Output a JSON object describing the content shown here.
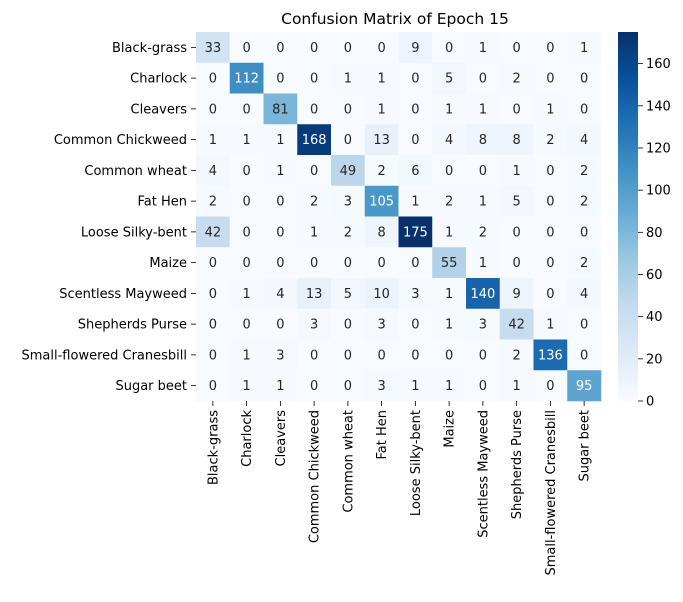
{
  "chart_data": {
    "type": "heatmap",
    "title": "Confusion Matrix of Epoch 15",
    "xlabel": "",
    "ylabel": "",
    "row_labels": [
      "Black-grass",
      "Charlock",
      "Cleavers",
      "Common Chickweed",
      "Common wheat",
      "Fat Hen",
      "Loose Silky-bent",
      "Maize",
      "Scentless Mayweed",
      "Shepherds Purse",
      "Small-flowered Cranesbill",
      "Sugar beet"
    ],
    "col_labels": [
      "Black-grass",
      "Charlock",
      "Cleavers",
      "Common Chickweed",
      "Common wheat",
      "Fat Hen",
      "Loose Silky-bent",
      "Maize",
      "Scentless Mayweed",
      "Shepherds Purse",
      "Small-flowered Cranesbill",
      "Sugar beet"
    ],
    "matrix": [
      [
        33,
        0,
        0,
        0,
        0,
        0,
        9,
        0,
        1,
        0,
        0,
        1
      ],
      [
        0,
        112,
        0,
        0,
        1,
        1,
        0,
        5,
        0,
        2,
        0,
        0
      ],
      [
        0,
        0,
        81,
        0,
        0,
        1,
        0,
        1,
        1,
        0,
        1,
        0
      ],
      [
        1,
        1,
        1,
        168,
        0,
        13,
        0,
        4,
        8,
        8,
        2,
        4
      ],
      [
        4,
        0,
        1,
        0,
        49,
        2,
        6,
        0,
        0,
        1,
        0,
        2
      ],
      [
        2,
        0,
        0,
        2,
        3,
        105,
        1,
        2,
        1,
        5,
        0,
        2
      ],
      [
        42,
        0,
        0,
        1,
        2,
        8,
        175,
        1,
        2,
        0,
        0,
        0
      ],
      [
        0,
        0,
        0,
        0,
        0,
        0,
        0,
        55,
        1,
        0,
        0,
        2
      ],
      [
        0,
        1,
        4,
        13,
        5,
        10,
        3,
        1,
        140,
        9,
        0,
        4
      ],
      [
        0,
        0,
        0,
        3,
        0,
        3,
        0,
        1,
        3,
        42,
        1,
        0
      ],
      [
        0,
        1,
        3,
        0,
        0,
        0,
        0,
        0,
        0,
        2,
        136,
        0
      ],
      [
        0,
        1,
        1,
        0,
        0,
        3,
        1,
        1,
        0,
        1,
        0,
        95
      ]
    ],
    "colorbar": {
      "min": 0,
      "max": 175,
      "ticks": [
        0,
        20,
        40,
        60,
        80,
        100,
        120,
        140,
        160
      ],
      "colormap": "Blues",
      "colors": [
        "#f7fbff",
        "#deebf7",
        "#c6dbef",
        "#9ecae1",
        "#6baed6",
        "#4292c6",
        "#2171b5",
        "#08519c",
        "#08306b"
      ]
    },
    "grid": false
  }
}
